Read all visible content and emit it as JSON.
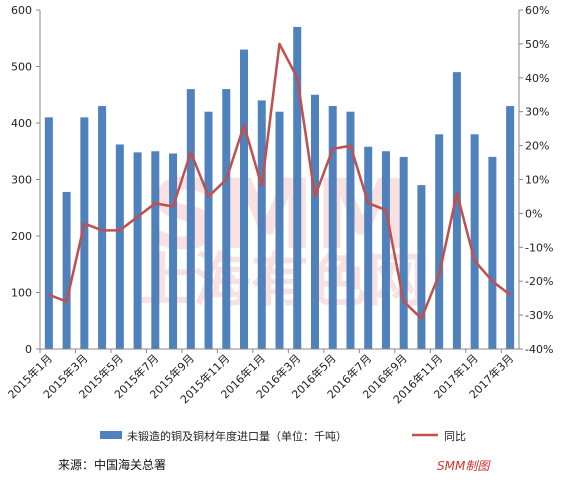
{
  "chart_data": {
    "type": "bar",
    "categories": [
      "2015年1月",
      "2015年2月",
      "2015年3月",
      "2015年4月",
      "2015年5月",
      "2015年6月",
      "2015年7月",
      "2015年8月",
      "2015年9月",
      "2015年10月",
      "2015年11月",
      "2015年12月",
      "2016年1月",
      "2016年2月",
      "2016年3月",
      "2016年4月",
      "2016年5月",
      "2016年6月",
      "2016年7月",
      "2016年8月",
      "2016年9月",
      "2016年10月",
      "2016年11月",
      "2016年12月",
      "2017年1月",
      "2017年2月",
      "2017年3月"
    ],
    "xtick_labels": [
      "2015年1月",
      "2015年3月",
      "2015年5月",
      "2015年7月",
      "2015年9月",
      "2015年11月",
      "2016年1月",
      "2016年3月",
      "2016年5月",
      "2016年7月",
      "2016年9月",
      "2016年11月",
      "2017年1月",
      "2017年3月"
    ],
    "series": [
      {
        "name": "未锻造的铜及铜材年度进口量（单位：千吨）",
        "axis": "left",
        "type": "bar",
        "color": "#4f81bd",
        "values": [
          410,
          278,
          410,
          430,
          362,
          348,
          350,
          346,
          460,
          420,
          460,
          530,
          440,
          420,
          570,
          450,
          430,
          420,
          358,
          350,
          340,
          290,
          380,
          490,
          380,
          340,
          430
        ]
      },
      {
        "name": "同比",
        "axis": "right",
        "type": "line",
        "color": "#c0504d",
        "values": [
          -24,
          -26,
          -3,
          -5,
          -5,
          -1,
          3,
          2,
          18,
          5,
          10,
          26,
          8,
          50,
          40,
          5,
          19,
          20,
          3,
          1,
          -26,
          -31,
          -18,
          6,
          -14,
          -20,
          -24
        ]
      }
    ],
    "y_left": {
      "ylim": [
        0,
        600
      ],
      "ticks": [
        "0",
        "100",
        "200",
        "300",
        "400",
        "500",
        "600"
      ]
    },
    "y_right": {
      "ylim": [
        -40,
        60
      ],
      "ticks": [
        "-40%",
        "-30%",
        "-20%",
        "-10%",
        "0%",
        "10%",
        "20%",
        "30%",
        "40%",
        "50%",
        "60%"
      ]
    },
    "grid": false,
    "legend_position": "bottom"
  },
  "footer": {
    "source": "来源：中国海关总署",
    "brand": "SMM制图"
  },
  "watermark": {
    "text": "SMM",
    "subtext": "上海有色网"
  },
  "colors": {
    "bar": "#4f81bd",
    "line": "#c0504d",
    "axis": "#888888",
    "brand": "#d0312d"
  }
}
